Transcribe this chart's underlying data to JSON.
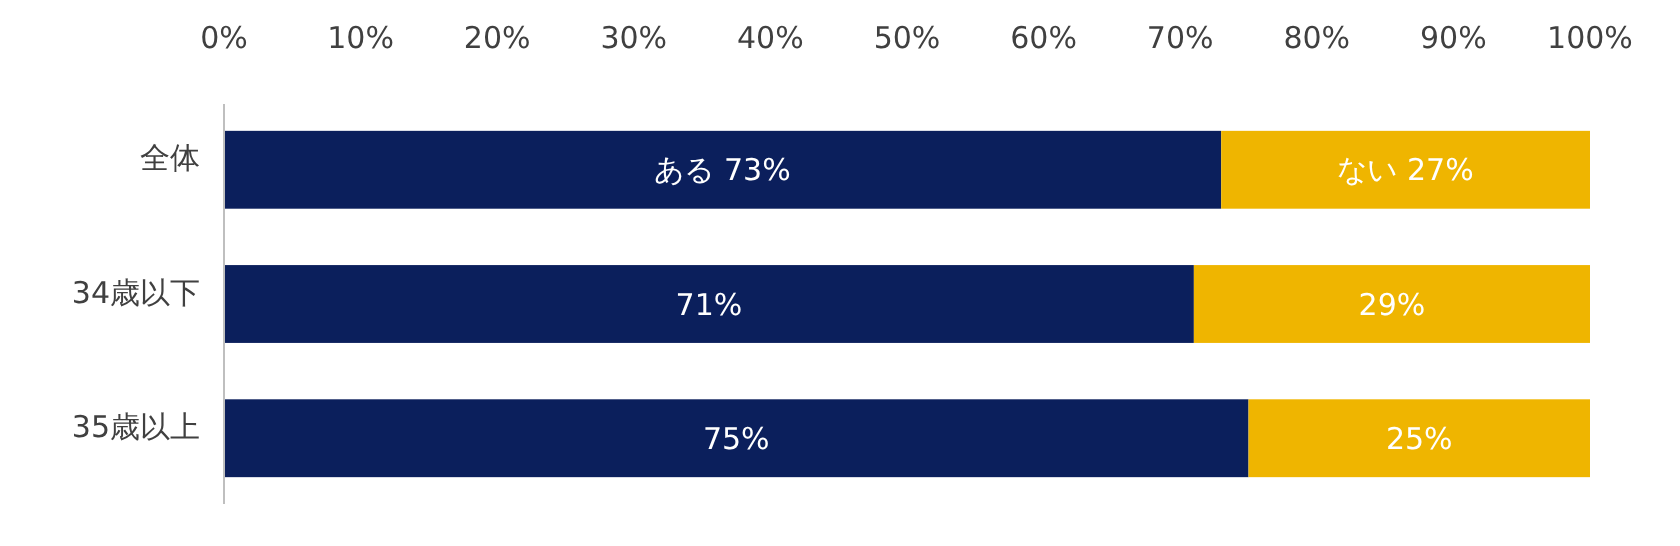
{
  "chart_data": {
    "type": "bar",
    "orientation": "horizontal",
    "stacked": true,
    "categories": [
      "全体",
      "34歳以下",
      "35歳以上"
    ],
    "series": [
      {
        "name": "ある",
        "color": "#0b1f5c",
        "values": [
          73,
          71,
          75
        ],
        "value_labels": [
          "73%",
          "71%",
          "75%"
        ]
      },
      {
        "name": "ない",
        "color": "#efb500",
        "values": [
          27,
          29,
          25
        ],
        "value_labels": [
          "27%",
          "29%",
          "25%"
        ]
      }
    ],
    "xlim": [
      0,
      100
    ],
    "xticks": [
      {
        "value": 0,
        "label": "0%"
      },
      {
        "value": 10,
        "label": "10%"
      },
      {
        "value": 20,
        "label": "20%"
      },
      {
        "value": 30,
        "label": "30%"
      },
      {
        "value": 40,
        "label": "40%"
      },
      {
        "value": 50,
        "label": "50%"
      },
      {
        "value": 60,
        "label": "60%"
      },
      {
        "value": 70,
        "label": "70%"
      },
      {
        "value": 80,
        "label": "80%"
      },
      {
        "value": 90,
        "label": "90%"
      },
      {
        "value": 100,
        "label": "100%"
      }
    ],
    "grid": false,
    "legend": false
  }
}
